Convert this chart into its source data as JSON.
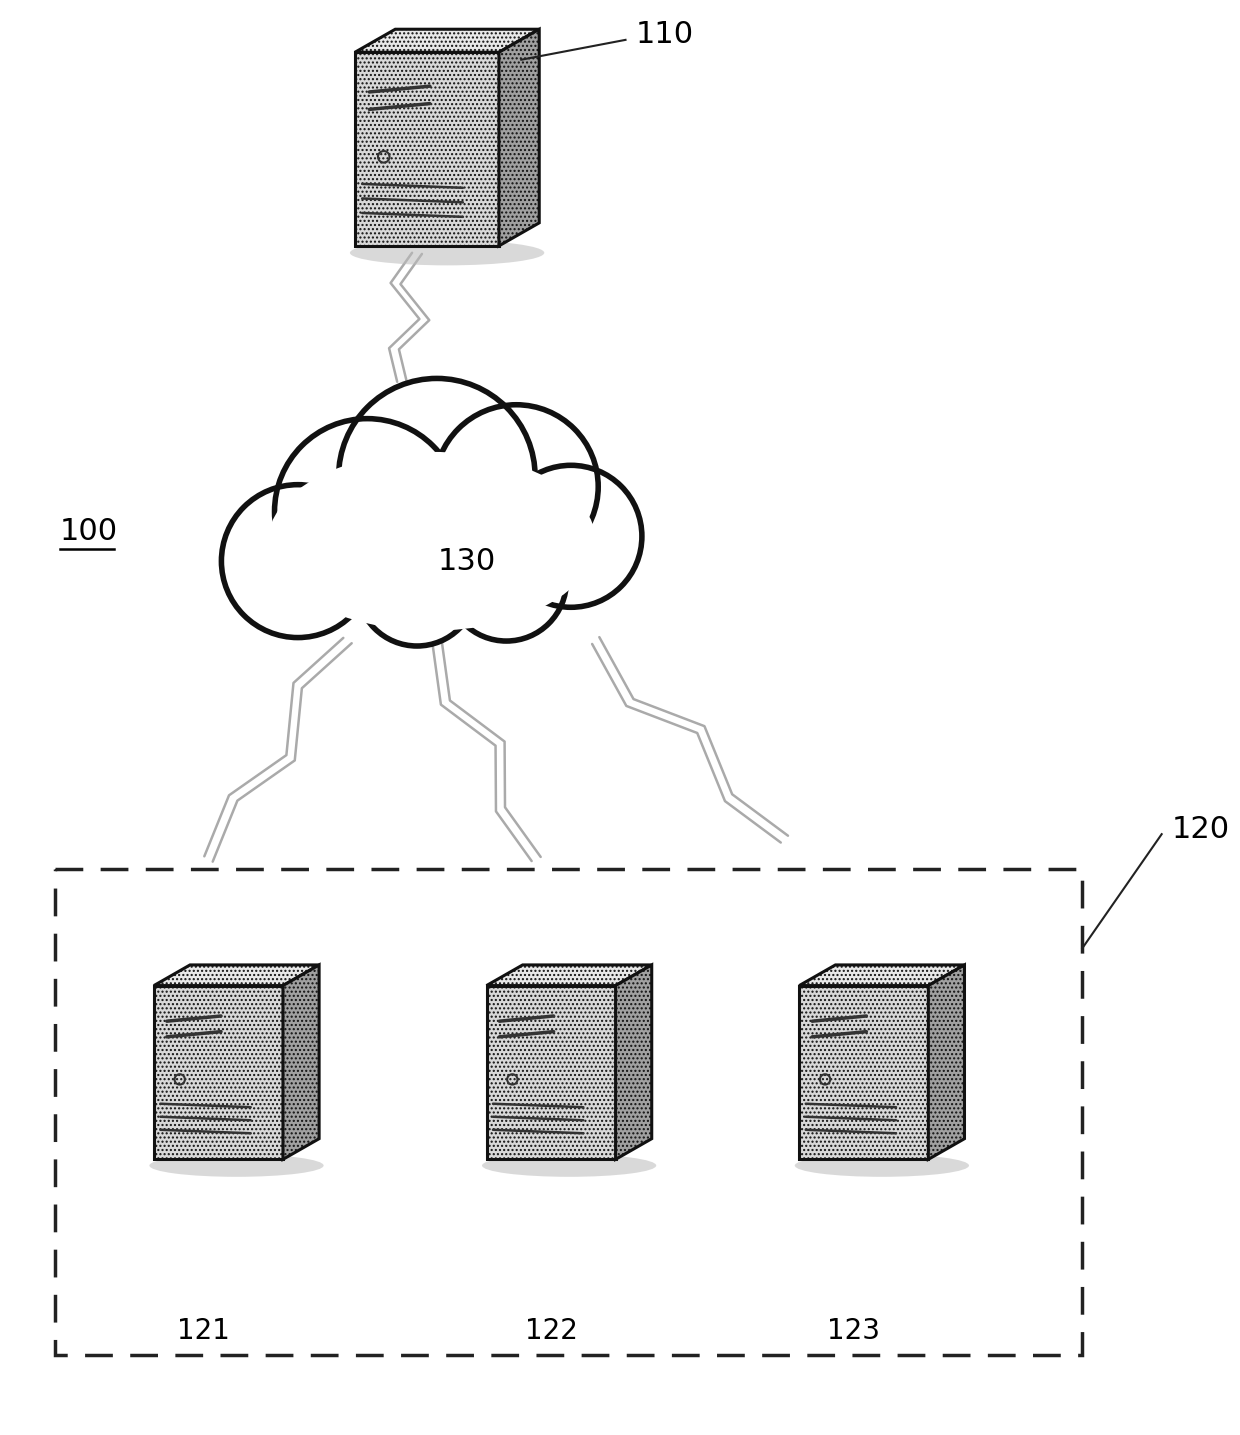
{
  "bg_color": "#ffffff",
  "label_100": "100",
  "label_110": "110",
  "label_120": "120",
  "label_130": "130",
  "label_121": "121",
  "label_122": "122",
  "label_123": "123",
  "cloud_edge": "#111111",
  "cloud_edge_lw": 4.0,
  "dashed_box_color": "#222222",
  "text_color": "#000000",
  "server_face_light": "#d8d8d8",
  "server_face_mid": "#c0c0c0",
  "server_face_dark": "#a0a0a0",
  "server_edge": "#111111",
  "server_edge_lw": 2.2,
  "server_shadow": "#bbbbbb",
  "font_size_labels": 22,
  "font_size_100": 22,
  "lightning_color": "#aaaaaa",
  "lightning_lw": 1.8,
  "label_line_color": "#222222"
}
